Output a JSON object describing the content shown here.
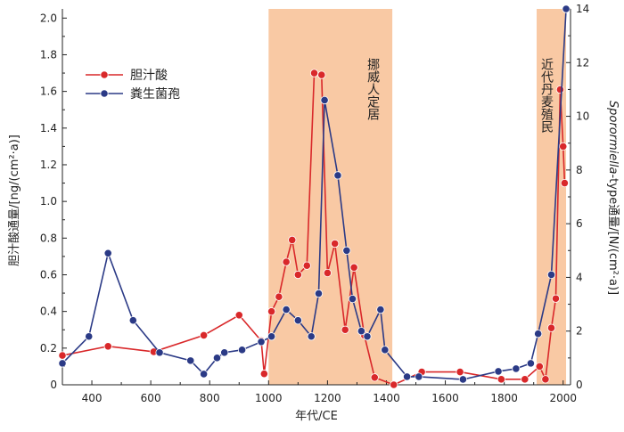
{
  "chart_data": {
    "type": "line",
    "xlabel": "年代/CE",
    "ylabel_left": "胆汁酸通量/[ng/(cm²·a)]",
    "ylabel_right_italic": "Sporormiella",
    "ylabel_right_rest": "-type通量/[N/(cm²·a)]",
    "xlim": [
      300,
      2025
    ],
    "ylim_left": [
      0,
      2.05
    ],
    "ylim_right": [
      0,
      14
    ],
    "x_ticks": [
      400,
      600,
      800,
      1000,
      1200,
      1400,
      1600,
      1800,
      2000
    ],
    "y_left_ticks": [
      "0",
      "0.2",
      "0.4",
      "0.6",
      "0.8",
      "1.0",
      "1.2",
      "1.4",
      "1.6",
      "1.8",
      "2.0"
    ],
    "y_right_ticks": [
      "0",
      "2",
      "4",
      "6",
      "8",
      "10",
      "12",
      "14"
    ],
    "shaded_periods": [
      {
        "start": 1000,
        "end": 1420,
        "label": "挪威人定居",
        "color": "#f9c9a4"
      },
      {
        "start": 1910,
        "end": 2010,
        "label": "近代丹麦殖民",
        "color": "#f9c9a4"
      }
    ],
    "series": [
      {
        "name": "胆汁酸",
        "axis": "left",
        "color": "#d9282a",
        "x": [
          300,
          455,
          610,
          780,
          900,
          975,
          985,
          1010,
          1035,
          1060,
          1080,
          1100,
          1130,
          1155,
          1180,
          1200,
          1225,
          1260,
          1290,
          1325,
          1360,
          1425,
          1520,
          1650,
          1790,
          1870,
          1920,
          1940,
          1960,
          1975,
          1990,
          2000,
          2005
        ],
        "y": [
          0.16,
          0.21,
          0.18,
          0.27,
          0.38,
          0.24,
          0.06,
          0.4,
          0.48,
          0.67,
          0.79,
          0.6,
          0.65,
          1.7,
          1.69,
          0.61,
          0.77,
          0.3,
          0.64,
          0.27,
          0.04,
          0.0,
          0.07,
          0.07,
          0.03,
          0.03,
          0.1,
          0.03,
          0.31,
          0.47,
          1.61,
          1.3,
          1.1
        ]
      },
      {
        "name": "粪生菌孢",
        "axis": "right",
        "color": "#2b3a86",
        "x": [
          300,
          390,
          455,
          540,
          630,
          735,
          780,
          825,
          850,
          910,
          975,
          1010,
          1060,
          1100,
          1145,
          1170,
          1190,
          1235,
          1265,
          1285,
          1315,
          1335,
          1380,
          1395,
          1470,
          1510,
          1660,
          1780,
          1840,
          1890,
          1915,
          1960,
          2010
        ],
        "y": [
          0.8,
          1.8,
          4.9,
          2.4,
          1.2,
          0.9,
          0.4,
          1.0,
          1.2,
          1.3,
          1.6,
          1.8,
          2.8,
          2.4,
          1.8,
          3.4,
          10.6,
          7.8,
          5.0,
          3.2,
          2.0,
          1.8,
          2.8,
          1.3,
          0.3,
          0.3,
          0.2,
          0.5,
          0.6,
          0.8,
          1.9,
          4.1,
          14.0
        ]
      }
    ],
    "legend_position": "top-left"
  }
}
